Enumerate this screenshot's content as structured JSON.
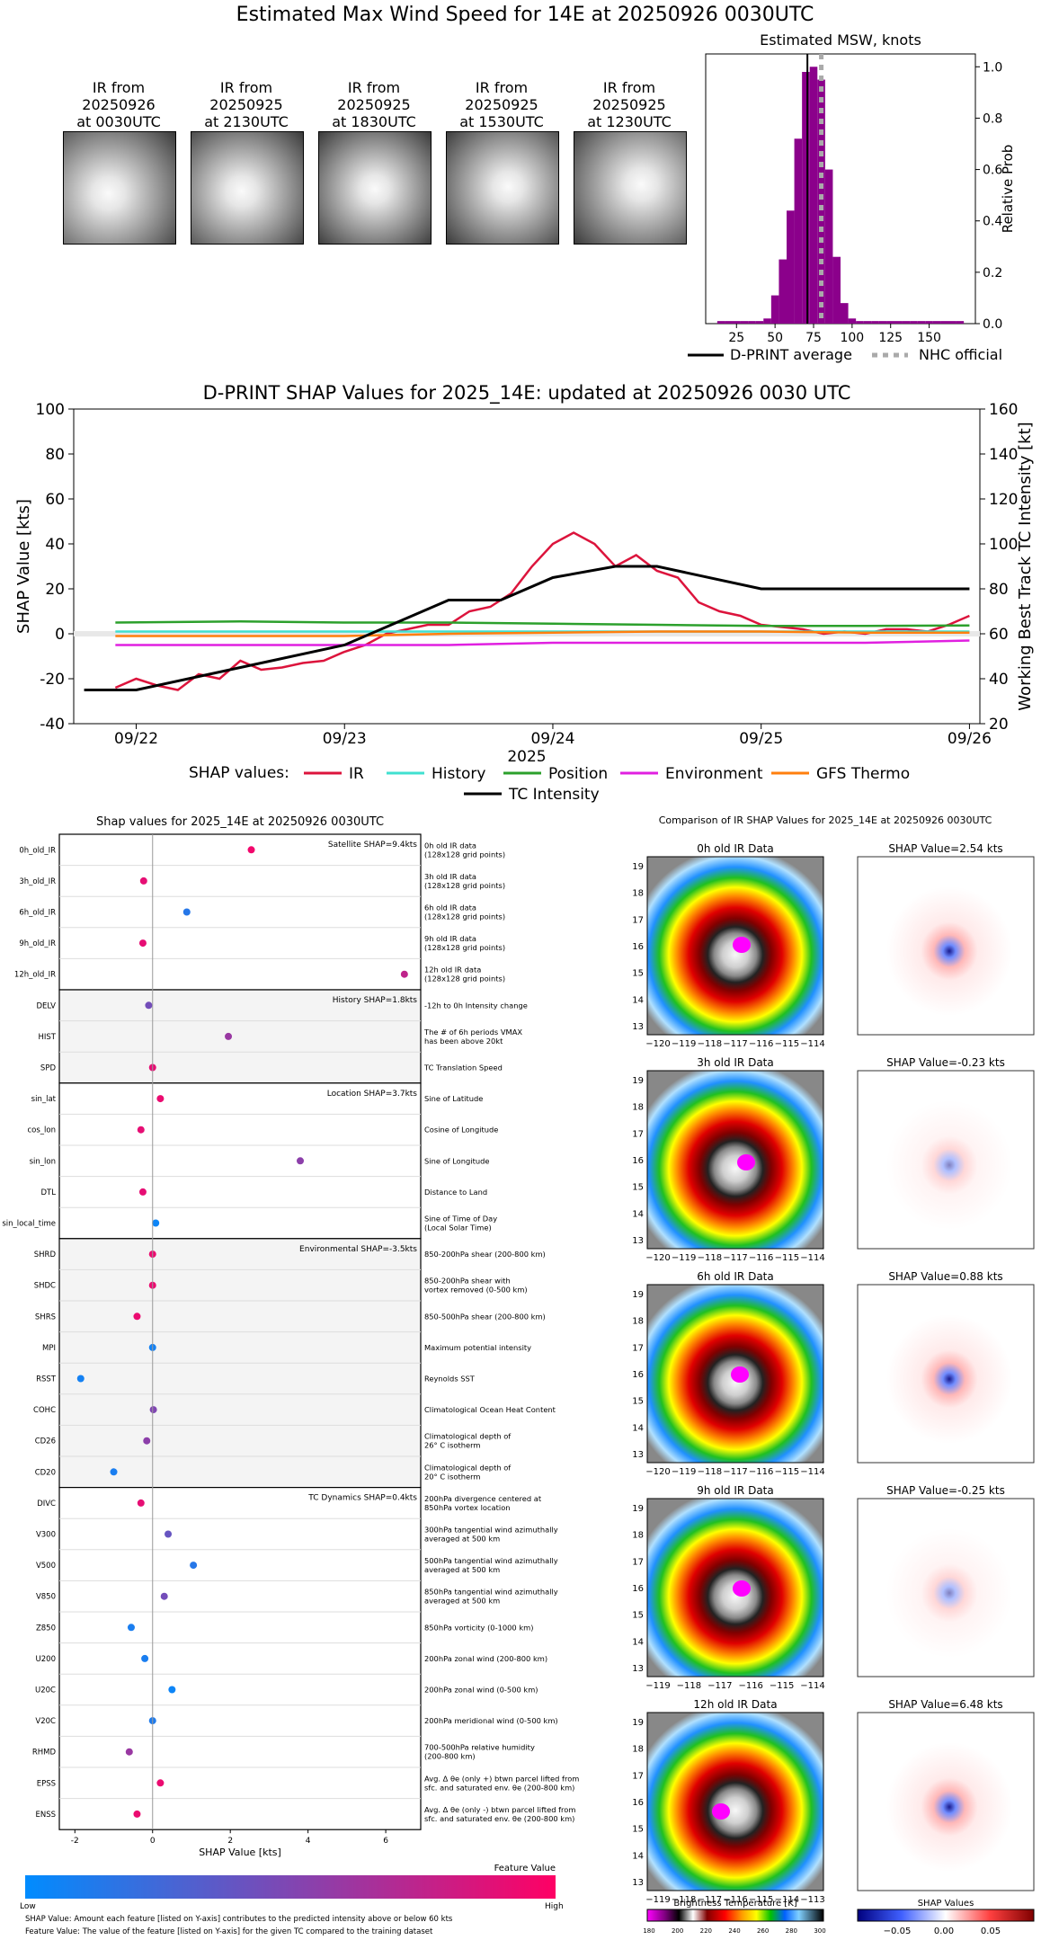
{
  "header": {
    "title": "Estimated Max Wind Speed for 14E at 20250926 0030UTC"
  },
  "thumbnails": [
    {
      "label_1": "IR from",
      "label_2": "20250926",
      "label_3": "at 0030UTC"
    },
    {
      "label_1": "IR from",
      "label_2": "20250925",
      "label_3": "at 2130UTC"
    },
    {
      "label_1": "IR from",
      "label_2": "20250925",
      "label_3": "at 1830UTC"
    },
    {
      "label_1": "IR from",
      "label_2": "20250925",
      "label_3": "at 1530UTC"
    },
    {
      "label_1": "IR from",
      "label_2": "20250925",
      "label_3": "at 1230UTC"
    }
  ],
  "chart_data": [
    {
      "type": "bar",
      "title": "Estimated MSW, knots",
      "ylabel": "Relative Prob",
      "xlim": [
        5,
        180
      ],
      "ylim": [
        0,
        1.05
      ],
      "xticks": [
        "25",
        "50",
        "75",
        "100",
        "125",
        "150"
      ],
      "yticks": [
        "0.0",
        "0.2",
        "0.4",
        "0.6",
        "0.8",
        "1.0"
      ],
      "bins": [
        15,
        20,
        25,
        30,
        35,
        40,
        45,
        50,
        55,
        60,
        65,
        70,
        75,
        80,
        85,
        90,
        95,
        100,
        105,
        110,
        115,
        120,
        125,
        130,
        135,
        140,
        145,
        150,
        155,
        160,
        165,
        170
      ],
      "values": [
        0.01,
        0.01,
        0.01,
        0.01,
        0.01,
        0.01,
        0.02,
        0.11,
        0.25,
        0.44,
        0.72,
        0.98,
        1.0,
        0.95,
        0.6,
        0.26,
        0.08,
        0.02,
        0.01,
        0.01,
        0.01,
        0.01,
        0.01,
        0.01,
        0.01,
        0.01,
        0.01,
        0.01,
        0.01,
        0.01,
        0.01,
        0.01
      ],
      "dprint_average": 71,
      "nhc_official": 80,
      "legend": [
        {
          "name": "D-PRINT average"
        },
        {
          "name": "NHC official"
        }
      ],
      "colors": {
        "bars": "#8b008b",
        "dprint": "#000000",
        "nhc": "#aaaaaa"
      }
    },
    {
      "type": "line",
      "title": "D-PRINT SHAP Values for 2025_14E: updated at 20250926 0030 UTC",
      "xlabel": "2025",
      "ylabel": "SHAP Value [kts]",
      "ylabel_right": "Working Best Track TC Intensity [kt]",
      "ylim": [
        -40,
        100
      ],
      "ylim_right": [
        20,
        160
      ],
      "xlim": [
        21.7,
        26.05
      ],
      "xticks": [
        {
          "v": 22,
          "label": "09/22"
        },
        {
          "v": 23,
          "label": "09/23"
        },
        {
          "v": 24,
          "label": "09/24"
        },
        {
          "v": 25,
          "label": "09/25"
        },
        {
          "v": 26,
          "label": "09/26"
        }
      ],
      "yticks": [
        "-40",
        "-20",
        "0",
        "20",
        "40",
        "60",
        "80",
        "100"
      ],
      "yticks_right": [
        "20",
        "40",
        "60",
        "80",
        "100",
        "120",
        "140",
        "160"
      ],
      "legend_prefix": "SHAP values:",
      "series": [
        {
          "name": "IR",
          "color": "#dc143c",
          "x": [
            21.9,
            22.0,
            22.1,
            22.2,
            22.3,
            22.4,
            22.5,
            22.6,
            22.7,
            22.8,
            22.9,
            23.0,
            23.1,
            23.2,
            23.3,
            23.4,
            23.5,
            23.6,
            23.7,
            23.8,
            23.9,
            24.0,
            24.1,
            24.2,
            24.3,
            24.4,
            24.5,
            24.6,
            24.7,
            24.8,
            24.9,
            25.0,
            25.1,
            25.2,
            25.3,
            25.4,
            25.5,
            25.6,
            25.7,
            25.8,
            25.9,
            26.0
          ],
          "y": [
            -24,
            -20,
            -23,
            -25,
            -18,
            -20,
            -12,
            -16,
            -15,
            -13,
            -12,
            -8,
            -5,
            0,
            2,
            4,
            4,
            10,
            12,
            18,
            30,
            40,
            45,
            40,
            30,
            35,
            28,
            25,
            14,
            10,
            8,
            4,
            3,
            2,
            0,
            1,
            0,
            2,
            2,
            1,
            4,
            8
          ]
        },
        {
          "name": "History",
          "color": "#40e0d0",
          "x": [
            21.9,
            26.0
          ],
          "y": [
            1,
            1
          ]
        },
        {
          "name": "Position",
          "color": "#2ca02c",
          "x": [
            21.9,
            22.5,
            23.0,
            23.5,
            24.0,
            24.5,
            25.0,
            25.5,
            26.0
          ],
          "y": [
            5,
            5.5,
            5,
            5,
            4.5,
            4,
            3.5,
            3.5,
            3.7
          ]
        },
        {
          "name": "Environment",
          "color": "#e020e0",
          "x": [
            21.9,
            22.5,
            23.0,
            23.5,
            24.0,
            24.5,
            25.0,
            25.5,
            26.0
          ],
          "y": [
            -5,
            -5,
            -5,
            -5,
            -4,
            -4,
            -4,
            -4,
            -3
          ]
        },
        {
          "name": "GFS Thermo",
          "color": "#ff7f0e",
          "x": [
            21.9,
            22.5,
            23.0,
            23.5,
            24.0,
            24.5,
            25.0,
            25.5,
            26.0
          ],
          "y": [
            -1,
            -1,
            -1,
            0,
            0.5,
            1,
            1,
            0.5,
            0.5
          ]
        },
        {
          "name": "TC Intensity",
          "color": "#000000",
          "axis": "right",
          "x": [
            21.75,
            22.0,
            22.5,
            23.0,
            23.5,
            23.75,
            24.0,
            24.3,
            24.5,
            25.0,
            26.0
          ],
          "y": [
            35,
            35,
            45,
            55,
            75,
            75,
            85,
            90,
            90,
            80,
            80
          ]
        }
      ]
    },
    {
      "type": "scatter",
      "title": "Shap values for 2025_14E at 20250926 0030UTC",
      "xlabel": "SHAP Value [kts]",
      "xlim": [
        -2.4,
        6.9
      ],
      "xticks": [
        "-2",
        "0",
        "2",
        "4",
        "6"
      ],
      "colorbar_title": "Feature Value",
      "colorbar_low": "Low",
      "colorbar_high": "High",
      "groups": [
        {
          "label": "Satellite SHAP=9.4kts",
          "features": [
            {
              "name": "0h_old_IR",
              "shap": 2.54,
              "fv": 0.95,
              "desc": [
                "0h old IR data",
                "(128x128 grid points)"
              ]
            },
            {
              "name": "3h_old_IR",
              "shap": -0.23,
              "fv": 0.9,
              "desc": [
                "3h old IR data",
                "(128x128 grid points)"
              ]
            },
            {
              "name": "6h_old_IR",
              "shap": 0.88,
              "fv": 0.15,
              "desc": [
                "6h old IR data",
                "(128x128 grid points)"
              ]
            },
            {
              "name": "9h_old_IR",
              "shap": -0.25,
              "fv": 0.9,
              "desc": [
                "9h old IR data",
                "(128x128 grid points)"
              ]
            },
            {
              "name": "12h_old_IR",
              "shap": 6.48,
              "fv": 0.75,
              "desc": [
                "12h old IR data",
                "(128x128 grid points)"
              ]
            }
          ]
        },
        {
          "label": "History SHAP=1.8kts",
          "features": [
            {
              "name": "DELV",
              "shap": -0.1,
              "fv": 0.45,
              "desc": [
                "-12h to 0h Intensity change"
              ]
            },
            {
              "name": "HIST",
              "shap": 1.95,
              "fv": 0.6,
              "desc": [
                "The # of 6h periods VMAX",
                "has been above 20kt"
              ]
            },
            {
              "name": "SPD",
              "shap": 0.0,
              "fv": 0.9,
              "desc": [
                "TC Translation Speed"
              ]
            }
          ]
        },
        {
          "label": "Location SHAP=3.7kts",
          "features": [
            {
              "name": "sin_lat",
              "shap": 0.2,
              "fv": 0.92,
              "desc": [
                "Sine of Latitude"
              ]
            },
            {
              "name": "cos_lon",
              "shap": -0.3,
              "fv": 0.9,
              "desc": [
                "Cosine of Longitude"
              ]
            },
            {
              "name": "sin_lon",
              "shap": 3.8,
              "fv": 0.55,
              "desc": [
                "Sine of Longitude"
              ]
            },
            {
              "name": "DTL",
              "shap": -0.25,
              "fv": 0.9,
              "desc": [
                "Distance to Land"
              ]
            },
            {
              "name": "sin_local_time",
              "shap": 0.08,
              "fv": 0.05,
              "desc": [
                "Sine of Time of Day",
                "(Local Solar Time)"
              ]
            }
          ]
        },
        {
          "label": "Environmental SHAP=-3.5kts",
          "features": [
            {
              "name": "SHRD",
              "shap": 0.0,
              "fv": 0.92,
              "desc": [
                "850-200hPa shear (200-800 km)"
              ]
            },
            {
              "name": "SHDC",
              "shap": 0.0,
              "fv": 0.92,
              "desc": [
                "850-200hPa shear with",
                "vortex removed (0-500 km)"
              ]
            },
            {
              "name": "SHRS",
              "shap": -0.4,
              "fv": 0.92,
              "desc": [
                "850-500hPa shear (200-800 km)"
              ]
            },
            {
              "name": "MPI",
              "shap": 0.0,
              "fv": 0.08,
              "desc": [
                "Maximum potential intensity"
              ]
            },
            {
              "name": "RSST",
              "shap": -1.85,
              "fv": 0.08,
              "desc": [
                "Reynolds SST"
              ]
            },
            {
              "name": "COHC",
              "shap": 0.02,
              "fv": 0.5,
              "desc": [
                "Climatological Ocean Heat Content"
              ]
            },
            {
              "name": "CD26",
              "shap": -0.15,
              "fv": 0.55,
              "desc": [
                "Climatological depth of",
                "26° C isotherm"
              ]
            },
            {
              "name": "CD20",
              "shap": -1.0,
              "fv": 0.1,
              "desc": [
                "Climatological depth of",
                "20° C isotherm"
              ]
            }
          ]
        },
        {
          "label": "TC Dynamics SHAP=0.4kts",
          "features": [
            {
              "name": "DIVC",
              "shap": -0.3,
              "fv": 0.9,
              "desc": [
                "200hPa divergence centered at",
                "850hPa vortex location"
              ]
            },
            {
              "name": "V300",
              "shap": 0.4,
              "fv": 0.4,
              "desc": [
                "300hPa tangential wind azimuthally",
                "averaged at 500 km"
              ]
            },
            {
              "name": "V500",
              "shap": 1.05,
              "fv": 0.15,
              "desc": [
                "500hPa tangential wind azimuthally",
                "averaged at 500 km"
              ]
            },
            {
              "name": "V850",
              "shap": 0.3,
              "fv": 0.45,
              "desc": [
                "850hPa tangential wind azimuthally",
                "averaged at 500 km"
              ]
            },
            {
              "name": "Z850",
              "shap": -0.55,
              "fv": 0.1,
              "desc": [
                "850hPa vorticity (0-1000 km)"
              ]
            },
            {
              "name": "U200",
              "shap": -0.2,
              "fv": 0.1,
              "desc": [
                "200hPa zonal wind (200-800 km)"
              ]
            },
            {
              "name": "U20C",
              "shap": 0.5,
              "fv": 0.05,
              "desc": [
                "200hPa zonal wind (0-500 km)"
              ]
            },
            {
              "name": "V20C",
              "shap": 0.0,
              "fv": 0.12,
              "desc": [
                "200hPa meridional wind (0-500 km)"
              ]
            },
            {
              "name": "RHMD",
              "shap": -0.6,
              "fv": 0.6,
              "desc": [
                "700-500hPa relative humidity",
                "(200-800 km)"
              ]
            },
            {
              "name": "EPSS",
              "shap": 0.2,
              "fv": 0.92,
              "desc": [
                "Avg. Δ θe (only +) btwn parcel lifted from",
                "sfc. and saturated env. θe (200-800 km)"
              ]
            },
            {
              "name": "ENSS",
              "shap": -0.4,
              "fv": 0.92,
              "desc": [
                "Avg. Δ θe (only -) btwn parcel lifted from",
                "sfc. and saturated env. θe (200-800 km)"
              ]
            }
          ]
        }
      ]
    }
  ],
  "comparison": {
    "title": "Comparison of IR SHAP Values for 2025_14E at 20250926 0030UTC",
    "ir_titles": [
      "0h old IR Data",
      "3h old IR Data",
      "6h old IR Data",
      "9h old IR Data",
      "12h old IR Data"
    ],
    "shap_titles": [
      "SHAP Value=2.54 kts",
      "SHAP Value=-0.23 kts",
      "SHAP Value=0.88 kts",
      "SHAP Value=-0.25 kts",
      "SHAP Value=6.48 kts"
    ],
    "lat_ticks": [
      "19",
      "18",
      "17",
      "16",
      "15",
      "14",
      "13"
    ],
    "lon_ticks_a": [
      "−120",
      "−119",
      "−118",
      "−117",
      "−116",
      "−115",
      "−114"
    ],
    "lon_ticks_b": [
      "−119",
      "−118",
      "−117",
      "−116",
      "−115",
      "−114"
    ],
    "lon_ticks_c": [
      "−119",
      "−118",
      "−117",
      "−116",
      "−115",
      "−114",
      "−113"
    ],
    "bt_colorbar_title": "Brightness Temperature [K]",
    "bt_ticks": [
      "180",
      "200",
      "220",
      "240",
      "260",
      "280",
      "300"
    ],
    "shap_colorbar_title": "SHAP Values",
    "shap_ticks": [
      "−0.05",
      "0.00",
      "0.05"
    ]
  },
  "footer": {
    "line1": "SHAP Value: Amount each feature [listed on Y-axis] contributes to the predicted intensity above or below 60 kts",
    "line2": "Feature Value: The value of the feature [listed on Y-axis] for the given TC compared to the training dataset"
  }
}
